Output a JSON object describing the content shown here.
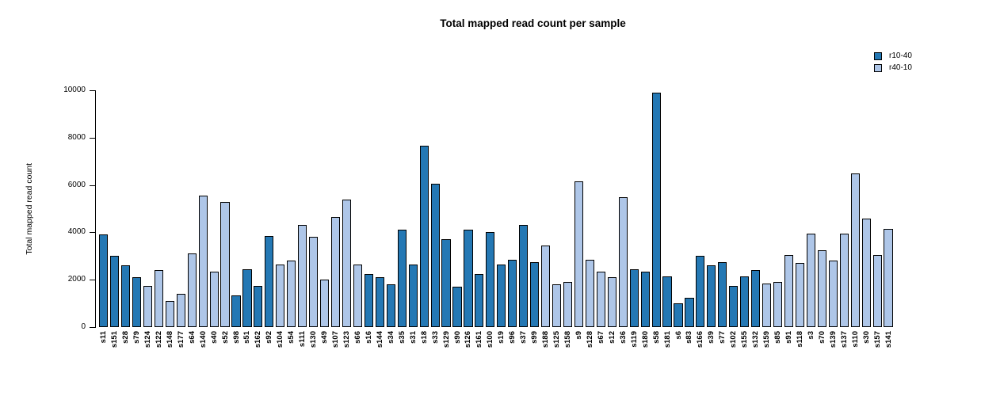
{
  "chart_data": {
    "type": "bar",
    "title": "Total mapped read count per sample",
    "xlabel": "",
    "ylabel": "Total mapped read count",
    "ylim": [
      0,
      10000
    ],
    "yticks": [
      0,
      2000,
      4000,
      6000,
      8000,
      10000
    ],
    "grid": false,
    "legend": {
      "position": "top-right",
      "entries": [
        {
          "label": "r10-40",
          "color": "#2478b4"
        },
        {
          "label": "r40-10",
          "color": "#aec6e8"
        }
      ]
    },
    "bar_border_color": "#000000",
    "bars": [
      {
        "label": "s11",
        "value": 3900,
        "group": "r10-40"
      },
      {
        "label": "s151",
        "value": 3000,
        "group": "r10-40"
      },
      {
        "label": "s28",
        "value": 2600,
        "group": "r10-40"
      },
      {
        "label": "s79",
        "value": 2100,
        "group": "r10-40"
      },
      {
        "label": "s124",
        "value": 1750,
        "group": "r40-10"
      },
      {
        "label": "s122",
        "value": 2400,
        "group": "r40-10"
      },
      {
        "label": "s148",
        "value": 1100,
        "group": "r40-10"
      },
      {
        "label": "s177",
        "value": 1400,
        "group": "r40-10"
      },
      {
        "label": "s64",
        "value": 3100,
        "group": "r40-10"
      },
      {
        "label": "s140",
        "value": 5550,
        "group": "r40-10"
      },
      {
        "label": "s40",
        "value": 2350,
        "group": "r40-10"
      },
      {
        "label": "s52",
        "value": 5300,
        "group": "r40-10"
      },
      {
        "label": "s98",
        "value": 1350,
        "group": "r10-40"
      },
      {
        "label": "s51",
        "value": 2450,
        "group": "r10-40"
      },
      {
        "label": "s162",
        "value": 1750,
        "group": "r10-40"
      },
      {
        "label": "s92",
        "value": 3850,
        "group": "r10-40"
      },
      {
        "label": "s104",
        "value": 2650,
        "group": "r40-10"
      },
      {
        "label": "s54",
        "value": 2800,
        "group": "r40-10"
      },
      {
        "label": "s111",
        "value": 4300,
        "group": "r40-10"
      },
      {
        "label": "s130",
        "value": 3800,
        "group": "r40-10"
      },
      {
        "label": "s49",
        "value": 2000,
        "group": "r40-10"
      },
      {
        "label": "s107",
        "value": 4650,
        "group": "r40-10"
      },
      {
        "label": "s123",
        "value": 5400,
        "group": "r40-10"
      },
      {
        "label": "s66",
        "value": 2650,
        "group": "r40-10"
      },
      {
        "label": "s16",
        "value": 2250,
        "group": "r10-40"
      },
      {
        "label": "s144",
        "value": 2100,
        "group": "r10-40"
      },
      {
        "label": "s34",
        "value": 1800,
        "group": "r10-40"
      },
      {
        "label": "s35",
        "value": 4100,
        "group": "r10-40"
      },
      {
        "label": "s31",
        "value": 2650,
        "group": "r10-40"
      },
      {
        "label": "s18",
        "value": 7650,
        "group": "r10-40"
      },
      {
        "label": "s33",
        "value": 6050,
        "group": "r10-40"
      },
      {
        "label": "s129",
        "value": 3700,
        "group": "r10-40"
      },
      {
        "label": "s90",
        "value": 1700,
        "group": "r10-40"
      },
      {
        "label": "s126",
        "value": 4100,
        "group": "r10-40"
      },
      {
        "label": "s161",
        "value": 2250,
        "group": "r10-40"
      },
      {
        "label": "s100",
        "value": 4000,
        "group": "r10-40"
      },
      {
        "label": "s19",
        "value": 2650,
        "group": "r10-40"
      },
      {
        "label": "s96",
        "value": 2850,
        "group": "r10-40"
      },
      {
        "label": "s37",
        "value": 4300,
        "group": "r10-40"
      },
      {
        "label": "s99",
        "value": 2750,
        "group": "r10-40"
      },
      {
        "label": "s188",
        "value": 3450,
        "group": "r40-10"
      },
      {
        "label": "s125",
        "value": 1800,
        "group": "r40-10"
      },
      {
        "label": "s158",
        "value": 1900,
        "group": "r40-10"
      },
      {
        "label": "s9",
        "value": 6150,
        "group": "r40-10"
      },
      {
        "label": "s128",
        "value": 2850,
        "group": "r40-10"
      },
      {
        "label": "s67",
        "value": 2350,
        "group": "r40-10"
      },
      {
        "label": "s12",
        "value": 2100,
        "group": "r40-10"
      },
      {
        "label": "s36",
        "value": 5500,
        "group": "r40-10"
      },
      {
        "label": "s119",
        "value": 2450,
        "group": "r10-40"
      },
      {
        "label": "s180",
        "value": 2350,
        "group": "r10-40"
      },
      {
        "label": "s58",
        "value": 9900,
        "group": "r10-40"
      },
      {
        "label": "s181",
        "value": 2150,
        "group": "r10-40"
      },
      {
        "label": "s6",
        "value": 1000,
        "group": "r10-40"
      },
      {
        "label": "s83",
        "value": 1250,
        "group": "r10-40"
      },
      {
        "label": "s166",
        "value": 3000,
        "group": "r10-40"
      },
      {
        "label": "s39",
        "value": 2600,
        "group": "r10-40"
      },
      {
        "label": "s77",
        "value": 2750,
        "group": "r10-40"
      },
      {
        "label": "s102",
        "value": 1750,
        "group": "r10-40"
      },
      {
        "label": "s155",
        "value": 2150,
        "group": "r10-40"
      },
      {
        "label": "s132",
        "value": 2400,
        "group": "r10-40"
      },
      {
        "label": "s159",
        "value": 1850,
        "group": "r40-10"
      },
      {
        "label": "s85",
        "value": 1900,
        "group": "r40-10"
      },
      {
        "label": "s91",
        "value": 3050,
        "group": "r40-10"
      },
      {
        "label": "s118",
        "value": 2700,
        "group": "r40-10"
      },
      {
        "label": "s3",
        "value": 3950,
        "group": "r40-10"
      },
      {
        "label": "s70",
        "value": 3250,
        "group": "r40-10"
      },
      {
        "label": "s139",
        "value": 2800,
        "group": "r40-10"
      },
      {
        "label": "s137",
        "value": 3950,
        "group": "r40-10"
      },
      {
        "label": "s110",
        "value": 6500,
        "group": "r40-10"
      },
      {
        "label": "s30",
        "value": 4600,
        "group": "r40-10"
      },
      {
        "label": "s157",
        "value": 3050,
        "group": "r40-10"
      },
      {
        "label": "s141",
        "value": 4150,
        "group": "r40-10"
      }
    ]
  }
}
